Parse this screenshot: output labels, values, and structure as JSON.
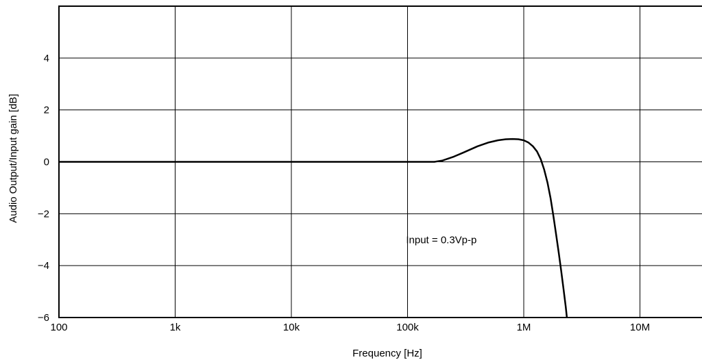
{
  "chart_data": {
    "type": "line",
    "title": "",
    "xlabel": "Frequency [Hz]",
    "ylabel": "Audio Output/Input gain [dB]",
    "x_scale": "log",
    "xlim": [
      100,
      60000000
    ],
    "ylim": [
      -6,
      6
    ],
    "x_ticks": [
      {
        "value": 100,
        "label": "100"
      },
      {
        "value": 1000,
        "label": "1k"
      },
      {
        "value": 10000,
        "label": "10k"
      },
      {
        "value": 100000,
        "label": "100k"
      },
      {
        "value": 1000000,
        "label": "1M"
      },
      {
        "value": 10000000,
        "label": "10M"
      }
    ],
    "y_ticks": [
      {
        "value": 4,
        "label": "4"
      },
      {
        "value": 2,
        "label": "2"
      },
      {
        "value": 0,
        "label": "0"
      },
      {
        "value": -2,
        "label": "−2"
      },
      {
        "value": -4,
        "label": "−4"
      },
      {
        "value": -6,
        "label": "−6"
      }
    ],
    "grid": true,
    "series": [
      {
        "x": [
          100,
          1000,
          10000,
          100000,
          170000,
          200000,
          250000,
          300000,
          400000,
          500000,
          600000,
          700000,
          800000,
          900000,
          1000000,
          1100000,
          1200000,
          1300000,
          1400000,
          1500000,
          1600000,
          1700000,
          1800000,
          1900000,
          2000000,
          2100000,
          2200000,
          2300000,
          2350000
        ],
        "y": [
          0,
          0,
          0,
          0,
          0,
          0.05,
          0.2,
          0.35,
          0.6,
          0.75,
          0.83,
          0.87,
          0.88,
          0.87,
          0.83,
          0.74,
          0.6,
          0.4,
          0.1,
          -0.3,
          -0.8,
          -1.4,
          -2.1,
          -2.8,
          -3.5,
          -4.2,
          -4.9,
          -5.6,
          -6
        ]
      }
    ],
    "annotations": [
      {
        "text": "Input = 0.3Vp-p",
        "x": 300000,
        "y": -3
      }
    ]
  }
}
